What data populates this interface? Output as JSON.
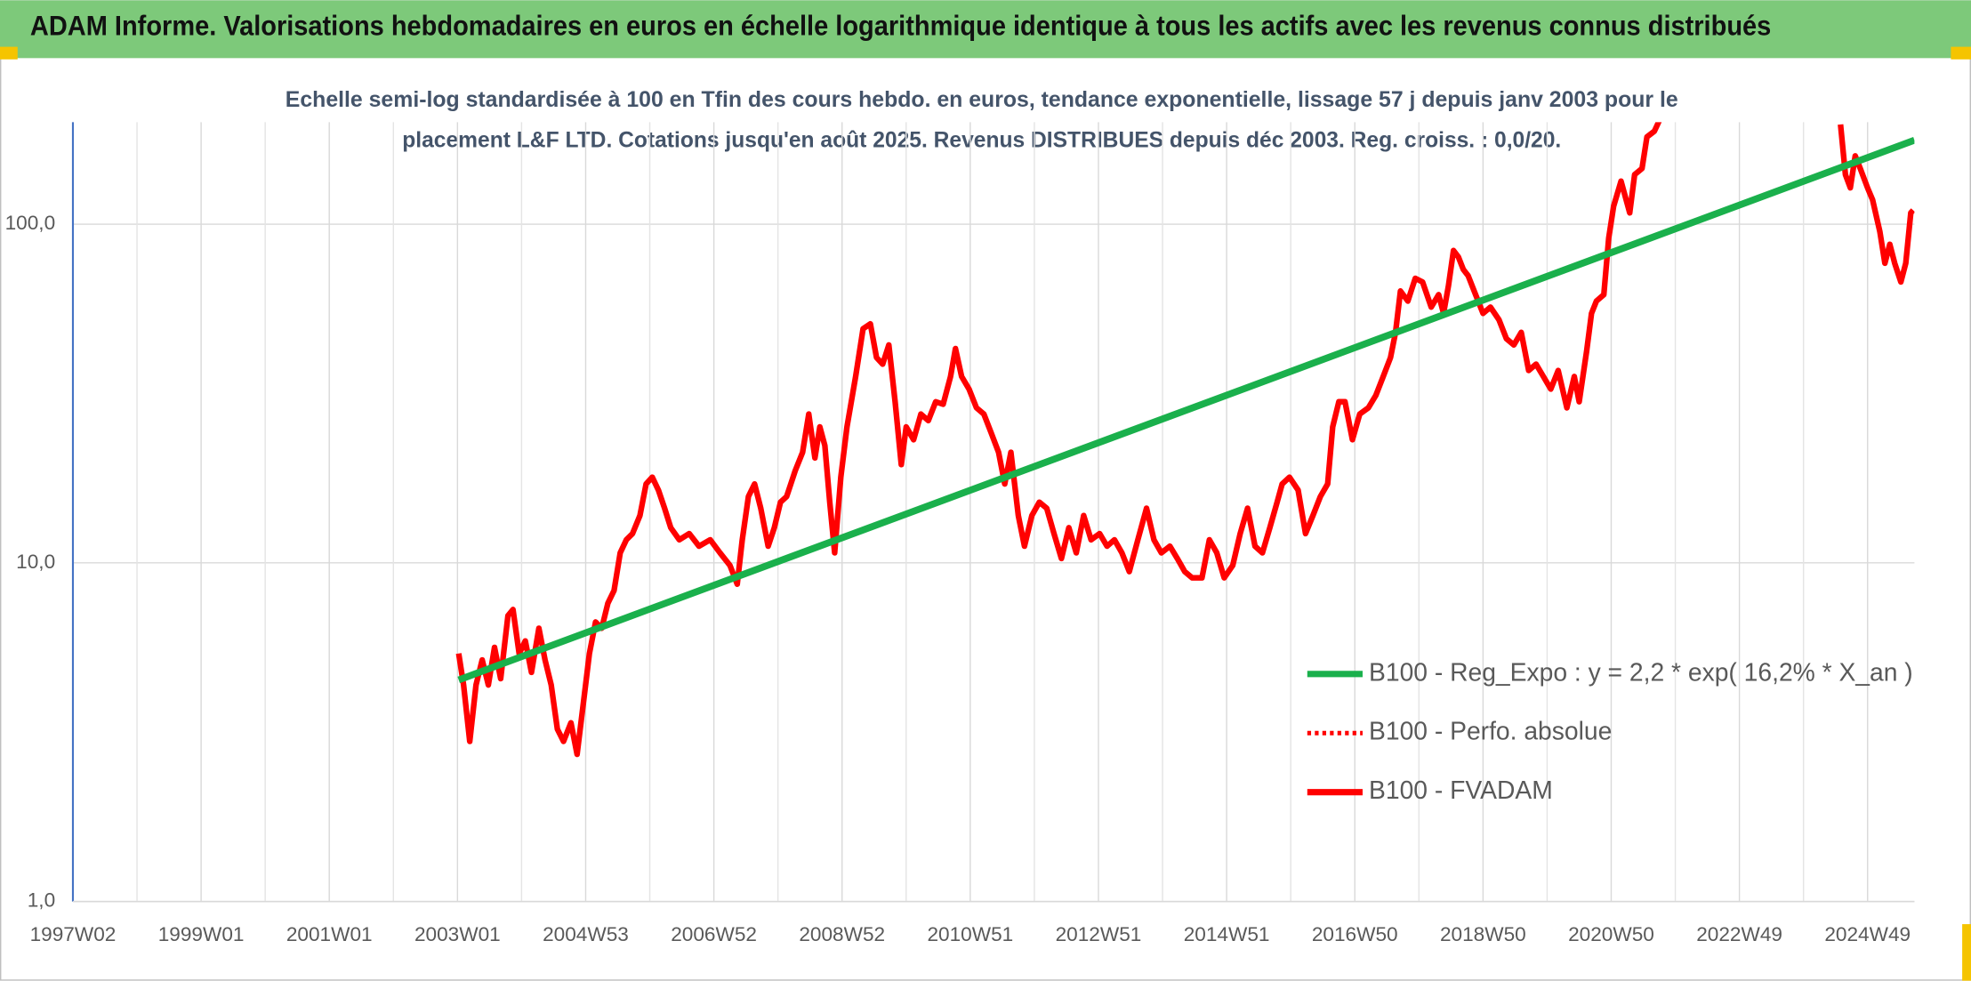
{
  "chart_data": {
    "type": "line",
    "title": "ADAM Informe. Valorisations hebdomadaires en euros en échelle logarithmique identique à tous les actifs avec les revenus connus distribués",
    "subtitle": [
      "Echelle semi-log standardisée à 100 en Tfin des cours hebdo. en euros, tendance exponentielle, lissage 57 j depuis janv 2003 pour le",
      "placement L&F LTD. Cotations jusqu'en août 2025. Revenus DISTRIBUES depuis déc 2003. Reg. croiss. : 0,0/20."
    ],
    "ylog": true,
    "ylim": [
      1,
      200
    ],
    "yticks": [
      {
        "value": 1,
        "label": "1,0"
      },
      {
        "value": 10,
        "label": "10,0"
      },
      {
        "value": 100,
        "label": "100,0"
      }
    ],
    "xlim": [
      0,
      1494
    ],
    "xticks": [
      {
        "value": 0,
        "label": "1997W02"
      },
      {
        "value": 104,
        "label": "1999W01"
      },
      {
        "value": 208,
        "label": "2001W01"
      },
      {
        "value": 312,
        "label": "2003W01"
      },
      {
        "value": 416,
        "label": "2004W53"
      },
      {
        "value": 520,
        "label": "2006W52"
      },
      {
        "value": 624,
        "label": "2008W52"
      },
      {
        "value": 728,
        "label": "2010W51"
      },
      {
        "value": 832,
        "label": "2012W51"
      },
      {
        "value": 936,
        "label": "2014W51"
      },
      {
        "value": 1040,
        "label": "2016W50"
      },
      {
        "value": 1144,
        "label": "2018W50"
      },
      {
        "value": 1248,
        "label": "2020W50"
      },
      {
        "value": 1352,
        "label": "2022W49"
      },
      {
        "value": 1456,
        "label": "2024W49"
      }
    ],
    "xminorticks": [
      52,
      156,
      260,
      364,
      468,
      572,
      676,
      780,
      884,
      988,
      1092,
      1196,
      1300,
      1404
    ],
    "grid": true,
    "legend": "lower right",
    "series": [
      {
        "name": "B100 - Reg_Expo : y = 2,2 * exp( 16,2% *  X_an )",
        "color": "#1ab04c",
        "style": "solid",
        "x": [
          313,
          1494
        ],
        "values": [
          4.51,
          177
        ]
      },
      {
        "name": "B100 - Perfo. absolue",
        "color": "#ff0000",
        "style": "dotted",
        "x": [],
        "values": []
      },
      {
        "name": "B100 - FVADAM",
        "color": "#ff0000",
        "style": "solid",
        "x": [
          313,
          317,
          322,
          327,
          332,
          337,
          342,
          347,
          353,
          357,
          362,
          367,
          372,
          378,
          383,
          388,
          393,
          398,
          404,
          409,
          414,
          419,
          424,
          429,
          434,
          439,
          444,
          449,
          454,
          460,
          465,
          470,
          475,
          480,
          485,
          492,
          500,
          508,
          517,
          525,
          533,
          539,
          543,
          548,
          553,
          558,
          564,
          569,
          574,
          579,
          586,
          592,
          597,
          602,
          606,
          610,
          614,
          618,
          623,
          628,
          635,
          641,
          647,
          652,
          657,
          662,
          667,
          672,
          676,
          682,
          688,
          694,
          700,
          706,
          712,
          716,
          721,
          727,
          733,
          739,
          745,
          751,
          756,
          761,
          767,
          772,
          778,
          784,
          790,
          796,
          802,
          808,
          814,
          820,
          826,
          833,
          839,
          845,
          851,
          857,
          864,
          871,
          877,
          883,
          890,
          896,
          902,
          908,
          916,
          922,
          928,
          934,
          941,
          947,
          953,
          959,
          965,
          971,
          977,
          981,
          987,
          994,
          1000,
          1006,
          1012,
          1018,
          1022,
          1027,
          1032,
          1038,
          1044,
          1051,
          1057,
          1063,
          1069,
          1073,
          1077,
          1083,
          1089,
          1095,
          1102,
          1108,
          1112,
          1116,
          1120,
          1124,
          1128,
          1132,
          1138,
          1144,
          1150,
          1157,
          1163,
          1169,
          1175,
          1181,
          1187,
          1193,
          1199,
          1205,
          1212,
          1218,
          1222,
          1228,
          1232,
          1236,
          1242,
          1246,
          1250,
          1256,
          1263,
          1267,
          1273,
          1277,
          1283,
          1287,
          1360,
          1434,
          1438,
          1442,
          1446,
          1450,
          1456,
          1460,
          1466,
          1470,
          1474,
          1478,
          1483,
          1487,
          1491,
          1493
        ],
        "values": [
          5.4,
          4.36,
          2.97,
          4.36,
          5.17,
          4.36,
          5.63,
          4.55,
          6.98,
          7.28,
          5.4,
          5.88,
          4.75,
          6.41,
          5.17,
          4.36,
          3.23,
          2.97,
          3.37,
          2.72,
          3.83,
          5.4,
          6.69,
          6.41,
          7.6,
          8.28,
          10.7,
          11.7,
          12.2,
          13.8,
          17.1,
          17.9,
          16.4,
          14.5,
          12.7,
          11.7,
          12.2,
          11.2,
          11.7,
          10.7,
          9.83,
          8.65,
          11.7,
          15.7,
          17.1,
          14.5,
          11.2,
          12.7,
          15.1,
          15.7,
          18.7,
          21.2,
          27.5,
          20.4,
          25.2,
          22.2,
          15.1,
          10.7,
          17.9,
          25.2,
          35.5,
          49.1,
          50.8,
          40.4,
          38.6,
          44.0,
          29.9,
          19.5,
          25.2,
          23.1,
          27.5,
          26.3,
          29.9,
          29.4,
          35.5,
          42.9,
          35.5,
          32.6,
          28.7,
          27.5,
          24.2,
          21.2,
          17.1,
          21.2,
          13.8,
          11.2,
          13.8,
          15.1,
          14.5,
          12.2,
          10.3,
          12.7,
          10.7,
          13.8,
          11.7,
          12.2,
          11.2,
          11.7,
          10.7,
          9.42,
          11.7,
          14.5,
          11.7,
          10.7,
          11.2,
          10.3,
          9.42,
          9.03,
          9.03,
          11.7,
          10.7,
          9.03,
          9.83,
          12.2,
          14.5,
          11.2,
          10.7,
          12.7,
          15.1,
          17.1,
          17.9,
          16.4,
          12.2,
          13.8,
          15.7,
          17.1,
          25.2,
          29.9,
          29.9,
          23.1,
          27.5,
          28.7,
          31.2,
          35.5,
          40.4,
          47.9,
          63.5,
          59.3,
          69.2,
          67.5,
          56.9,
          61.9,
          54.5,
          65.8,
          83.6,
          80.0,
          73.5,
          70.4,
          61.9,
          54.5,
          56.9,
          52.2,
          45.9,
          44.0,
          47.9,
          37.0,
          38.6,
          35.5,
          32.6,
          37.0,
          28.7,
          35.5,
          29.9,
          42.1,
          54.5,
          59.3,
          61.9,
          91.0,
          113,
          134,
          108,
          140,
          146,
          181,
          188,
          202,
          null,
          197,
          140,
          128,
          159,
          146,
          128,
          118,
          95.0,
          76.7,
          87.2,
          76.7,
          67.5,
          76.7,
          108,
          110
        ]
      }
    ]
  }
}
